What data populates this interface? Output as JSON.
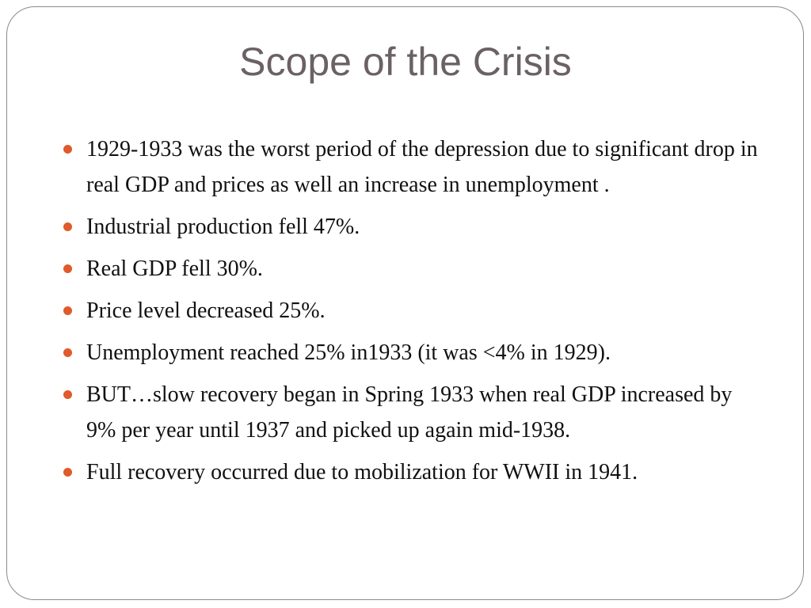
{
  "slide": {
    "title": "Scope of the Crisis",
    "accent_color": "#e05a2b",
    "bullets": [
      "1929-1933 was the worst period of the depression due to significant drop in real GDP and prices as well an increase in unemployment .",
      "Industrial production fell 47%.",
      "Real GDP fell 30%.",
      "Price level decreased 25%.",
      "Unemployment reached 25% in1933 (it was <4% in 1929).",
      "BUT…slow recovery began in Spring 1933 when real GDP increased by 9% per year until 1937 and picked up again mid-1938.",
      "Full recovery occurred due to mobilization for WWII in 1941."
    ]
  }
}
